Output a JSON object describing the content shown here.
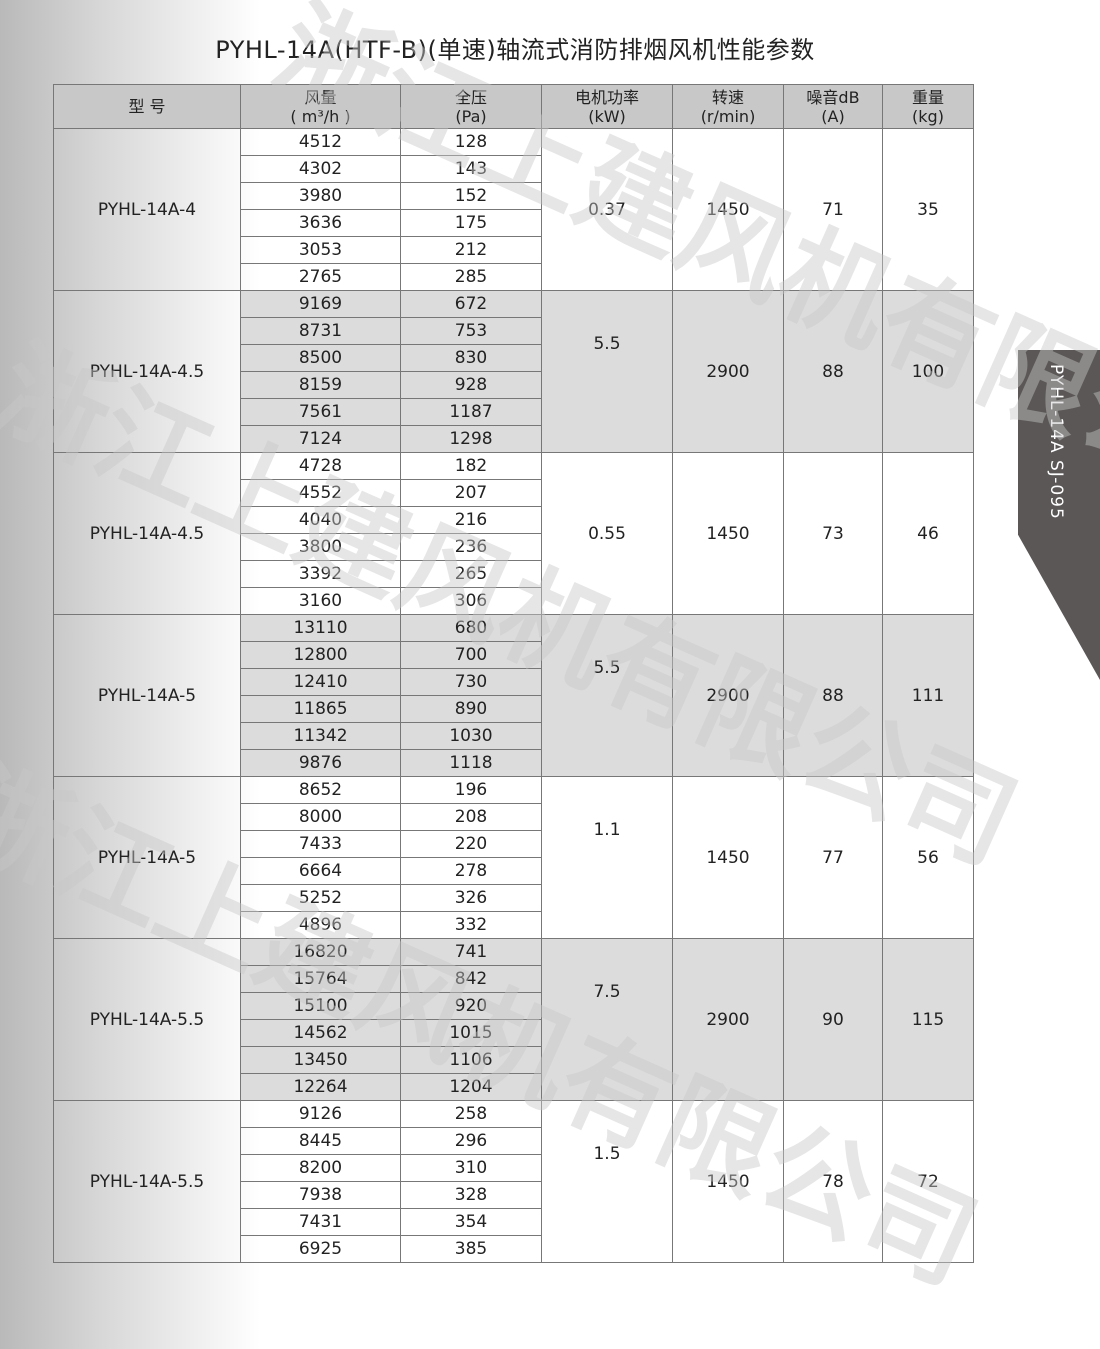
{
  "title": "PYHL-14A(HTF-B)(单速)轴流式消防排烟风机性能参数",
  "side_tab": "PYHL-14A  SJ-095",
  "watermark": "浙江上建风机有限公司",
  "headers": [
    {
      "line1": "型 号",
      "line2": ""
    },
    {
      "line1": "风量",
      "line2": "( m³/h )"
    },
    {
      "line1": "全压",
      "line2": "(Pa)"
    },
    {
      "line1": "电机功率",
      "line2": "(kW)"
    },
    {
      "line1": "转速",
      "line2": "(r/min)"
    },
    {
      "line1": "噪音dB",
      "line2": "(A)"
    },
    {
      "line1": "重量",
      "line2": "(kg)"
    }
  ],
  "groups": [
    {
      "model": "PYHL-14A-4",
      "kw": "0.37",
      "rpm": "1450",
      "noise": "71",
      "weight": "35",
      "flow": [
        "4512",
        "4302",
        "3980",
        "3636",
        "3053",
        "2765"
      ],
      "pressure": [
        "128",
        "143",
        "152",
        "175",
        "212",
        "285"
      ]
    },
    {
      "model": "PYHL-14A-4.5",
      "kw": "5.5",
      "rpm": "2900",
      "noise": "88",
      "weight": "100",
      "flow": [
        "9169",
        "8731",
        "8500",
        "8159",
        "7561",
        "7124"
      ],
      "pressure": [
        "672",
        "753",
        "830",
        "928",
        "1187",
        "1298"
      ]
    },
    {
      "model": "PYHL-14A-4.5",
      "kw": "0.55",
      "rpm": "1450",
      "noise": "73",
      "weight": "46",
      "flow": [
        "4728",
        "4552",
        "4040",
        "3800",
        "3392",
        "3160"
      ],
      "pressure": [
        "182",
        "207",
        "216",
        "236",
        "265",
        "306"
      ]
    },
    {
      "model": "PYHL-14A-5",
      "kw": "5.5",
      "rpm": "2900",
      "noise": "88",
      "weight": "111",
      "flow": [
        "13110",
        "12800",
        "12410",
        "11865",
        "11342",
        "9876"
      ],
      "pressure": [
        "680",
        "700",
        "730",
        "890",
        "1030",
        "1118"
      ]
    },
    {
      "model": "PYHL-14A-5",
      "kw": "1.1",
      "rpm": "1450",
      "noise": "77",
      "weight": "56",
      "flow": [
        "8652",
        "8000",
        "7433",
        "6664",
        "5252",
        "4896"
      ],
      "pressure": [
        "196",
        "208",
        "220",
        "278",
        "326",
        "332"
      ]
    },
    {
      "model": "PYHL-14A-5.5",
      "kw": "7.5",
      "rpm": "2900",
      "noise": "90",
      "weight": "115",
      "flow": [
        "16820",
        "15764",
        "15100",
        "14562",
        "13450",
        "12264"
      ],
      "pressure": [
        "741",
        "842",
        "920",
        "1015",
        "1106",
        "1204"
      ]
    },
    {
      "model": "PYHL-14A-5.5",
      "kw": "1.5",
      "rpm": "1450",
      "noise": "78",
      "weight": "72",
      "flow": [
        "9126",
        "8445",
        "8200",
        "7938",
        "7431",
        "6925"
      ],
      "pressure": [
        "258",
        "296",
        "310",
        "328",
        "354",
        "385"
      ]
    }
  ]
}
